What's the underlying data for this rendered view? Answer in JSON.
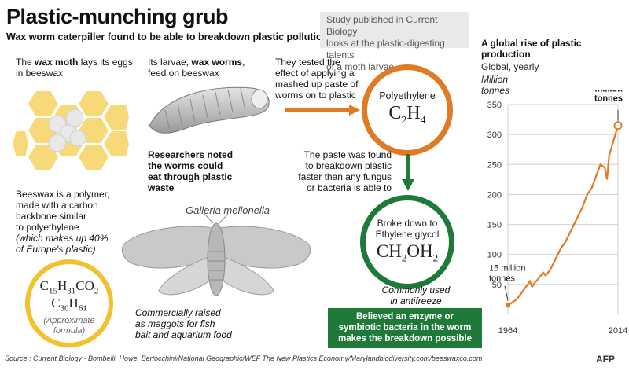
{
  "title": "Plastic-munching grub",
  "subtitle": "Wax worm caterpiller found to be able to breakdown plastic pollution",
  "study_box": [
    "Study published in Current Biology",
    "looks at the plastic-digesting talents",
    "of a moth larvae"
  ],
  "moth_text": {
    "pre": "The ",
    "bold": "wax moth",
    "post": " lays its eggs in beeswax"
  },
  "larvae_text": {
    "pre": "Its larvae, ",
    "bold": "wax worms",
    "post": ", feed on beeswax"
  },
  "tested_text": [
    "They tested the",
    "effect of applying a",
    "mashed up paste of",
    "worms on to plastic"
  ],
  "researchers_text": [
    "Researchers noted",
    "the worms could",
    "eat through plastic",
    "waste"
  ],
  "beeswax_text": [
    "Beeswax is a polymer,",
    "made with a carbon",
    "backbone similar",
    "to polyethylene"
  ],
  "beeswax_note": [
    "(which makes up 40%",
    "of Europe's plastic)"
  ],
  "polyethylene": {
    "label": "Polyethylene",
    "formula": "C",
    "sub": "2",
    "formula2": "H",
    "sub2": "4"
  },
  "paste_text": [
    "The paste was found",
    "to breakdown plastic",
    "faster than any fungus",
    "or bacteria is able to"
  ],
  "ethylene": {
    "label1": "Broke down to",
    "label2": "Ethylene glycol",
    "f1": "CH",
    "s1": "2",
    "f2": "OH",
    "s2": "2"
  },
  "antifreeze_text": [
    "Commonly used",
    "in antifreeze"
  ],
  "species": "Galleria mellonella",
  "wax_formula": {
    "a": "C",
    "a_sub": "15",
    "b": "H",
    "b_sub": "31",
    "c": "CO",
    "c_sub": "2",
    "d": "C",
    "d_sub": "30",
    "e": "H",
    "e_sub": "61"
  },
  "approx_text": [
    "(Approximate",
    "formula)"
  ],
  "commercial_text": [
    "Commercially raised",
    "as maggots for fish",
    "bait and aquarium food"
  ],
  "believed_text": [
    "Believed an enzyme or",
    "symbiotic bacteria in the worm",
    "makes the breakdown possible"
  ],
  "source": "Source : Current Biology - Bombelli, Howe, Bertocchini/National Geographic/WEF The New Plastics Economy/Marylandbiodiversity.com/beeswaxco.com",
  "logo": "AFP",
  "colors": {
    "orange": "#e07b25",
    "green": "#1f7a3a",
    "yellow": "#f2c12e"
  },
  "chart_data": {
    "type": "line",
    "title": "A global rise of plastic production",
    "subtitle": "Global, yearly",
    "ylabel": "Million tonnes",
    "ylim": [
      0,
      350
    ],
    "yticks": [
      50,
      100,
      150,
      200,
      250,
      300,
      350
    ],
    "xticks": [
      1964,
      2014
    ],
    "xlim": [
      1964,
      2014
    ],
    "x": [
      1964,
      1966,
      1968,
      1970,
      1972,
      1974,
      1975,
      1976,
      1978,
      1980,
      1981,
      1982,
      1984,
      1986,
      1988,
      1990,
      1992,
      1994,
      1996,
      1998,
      2000,
      2002,
      2004,
      2006,
      2008,
      2009,
      2010,
      2012,
      2014
    ],
    "y": [
      15,
      20,
      25,
      35,
      45,
      55,
      46,
      52,
      60,
      70,
      65,
      68,
      80,
      95,
      110,
      120,
      135,
      150,
      165,
      180,
      200,
      210,
      230,
      250,
      245,
      225,
      265,
      290,
      315
    ],
    "annotations": [
      {
        "line1": "15 million",
        "line2": "tonnes"
      },
      {
        "line1": "315",
        "line2": "million",
        "line3": "tonnes"
      }
    ]
  }
}
